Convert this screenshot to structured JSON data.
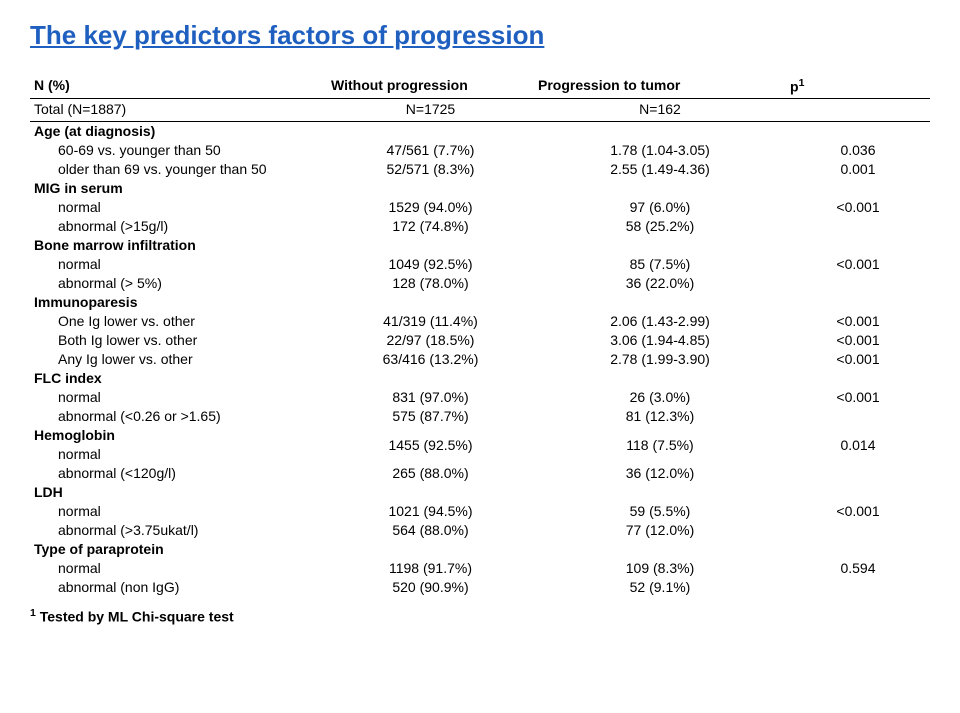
{
  "title_text": "The key predictors factors of progression",
  "title_color": "#1f5fbf",
  "header": {
    "c0": "N (%)",
    "c1": "Without progression",
    "c2": "Progression to tumor",
    "c3_pre": "p",
    "c3_sup": "1"
  },
  "subheader": {
    "c0": "Total (N=1887)",
    "c1": "N=1725",
    "c2": "N=162",
    "c3": ""
  },
  "sections": [
    {
      "head": "Age (at diagnosis)",
      "rows": [
        {
          "label": "60-69 vs. younger than 50",
          "wp": "47/561 (7.7%)",
          "pt": "1.78 (1.04-3.05)",
          "p": "0.036"
        },
        {
          "label": "older than 69 vs. younger than 50",
          "wp": "52/571 (8.3%)",
          "pt": "2.55 (1.49-4.36)",
          "p": "0.001"
        }
      ]
    },
    {
      "head": "MIG in serum",
      "rows": [
        {
          "label": "normal",
          "wp": "1529 (94.0%)",
          "pt": "97 (6.0%)",
          "p": "<0.001"
        },
        {
          "label": "abnormal (>15g/l)",
          "wp": "172 (74.8%)",
          "pt": "58 (25.2%)",
          "p": ""
        }
      ]
    },
    {
      "head": "Bone marrow infiltration",
      "rows": [
        {
          "label": "normal",
          "wp": "1049 (92.5%)",
          "pt": "85 (7.5%)",
          "p": "<0.001"
        },
        {
          "label": "abnormal (> 5%)",
          "wp": "128 (78.0%)",
          "pt": "36 (22.0%)",
          "p": ""
        }
      ]
    },
    {
      "head": "Immunoparesis",
      "rows": [
        {
          "label": "One Ig lower vs. other",
          "wp": "41/319 (11.4%)",
          "pt": "2.06 (1.43-2.99)",
          "p": "<0.001"
        },
        {
          "label": "Both Ig lower  vs. other",
          "wp": "22/97 (18.5%)",
          "pt": "3.06 (1.94-4.85)",
          "p": "<0.001"
        },
        {
          "label": "Any Ig lower  vs. other",
          "wp": "63/416 (13.2%)",
          "pt": "2.78 (1.99-3.90)",
          "p": "<0.001"
        }
      ]
    },
    {
      "head": "FLC index",
      "rows": [
        {
          "label": "normal",
          "wp": "831 (97.0%)",
          "pt": "26 (3.0%)",
          "p": "<0.001"
        },
        {
          "label": "abnormal (<0.26  or >1.65)",
          "wp": "575 (87.7%)",
          "pt": "81 (12.3%)",
          "p": ""
        }
      ]
    },
    {
      "head": "Hemoglobin",
      "head_inline": true,
      "rows": [
        {
          "label": "normal",
          "wp": "1455 (92.5%)",
          "pt": "118 (7.5%)",
          "p": "0.014"
        },
        {
          "label": "abnormal (<120g/l)",
          "wp": "265 (88.0%)",
          "pt": "36 (12.0%)",
          "p": ""
        }
      ]
    },
    {
      "head": "LDH",
      "rows": [
        {
          "label": "normal",
          "wp": "1021 (94.5%)",
          "pt": "59 (5.5%)",
          "p": "<0.001"
        },
        {
          "label": "abnormal (>3.75ukat/l)",
          "wp": "564 (88.0%)",
          "pt": "77 (12.0%)",
          "p": ""
        }
      ]
    },
    {
      "head": "Type of paraprotein",
      "rows": [
        {
          "label": "normal",
          "wp": "1198 (91.7%)",
          "pt": "109 (8.3%)",
          "p": "0.594"
        },
        {
          "label": "abnormal (non IgG)",
          "wp": "520 (90.9%)",
          "pt": "52 (9.1%)",
          "p": ""
        }
      ]
    }
  ],
  "footnote_pre_sup": "1",
  "footnote_text": " Tested by ML Chi-square test",
  "font_sizes": {
    "title": 26,
    "body": 14,
    "footnote": 14
  },
  "colors": {
    "text": "#000000",
    "background": "#ffffff",
    "rule": "#000000"
  }
}
